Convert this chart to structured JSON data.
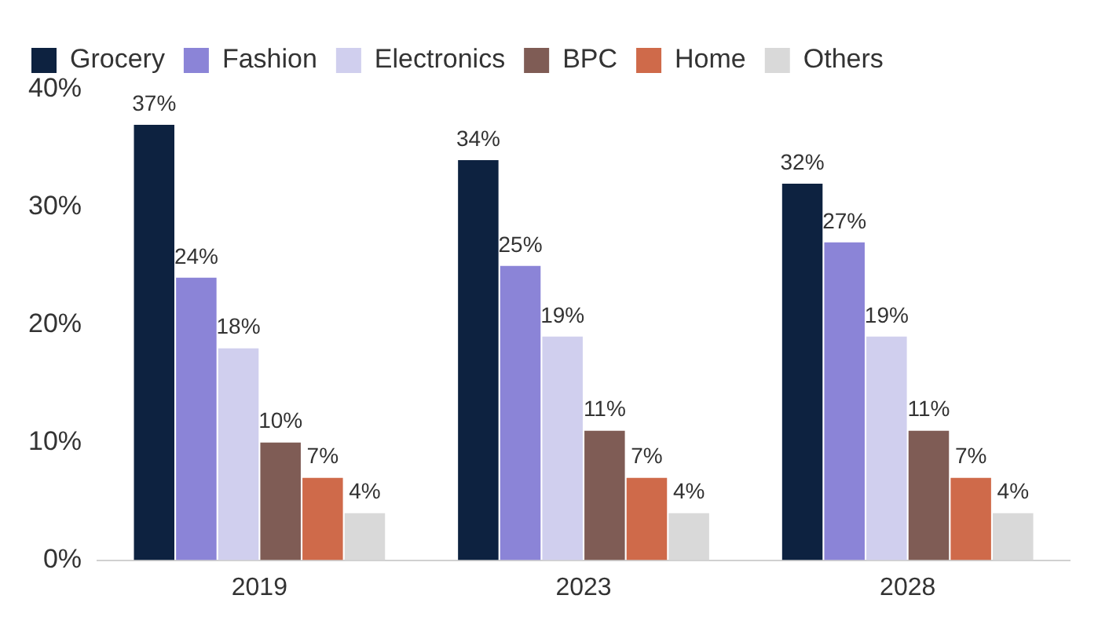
{
  "chart_data": {
    "type": "bar",
    "categories": [
      "2019",
      "2023",
      "2028"
    ],
    "series": [
      {
        "name": "Grocery",
        "color": "#0d2240",
        "values": [
          37,
          34,
          32
        ],
        "value_labels": [
          "37%",
          "34%",
          "32%"
        ]
      },
      {
        "name": "Fashion",
        "color": "#8b84d7",
        "values": [
          24,
          25,
          27
        ],
        "value_labels": [
          "24%",
          "25%",
          "27%"
        ]
      },
      {
        "name": "Electronics",
        "color": "#d0cfee",
        "values": [
          18,
          19,
          19
        ],
        "value_labels": [
          "18%",
          "19%",
          "19%"
        ]
      },
      {
        "name": "BPC",
        "color": "#7f5c55",
        "values": [
          10,
          11,
          11
        ],
        "value_labels": [
          "10%",
          "11%",
          "11%"
        ]
      },
      {
        "name": "Home",
        "color": "#cf6a4a",
        "values": [
          7,
          7,
          7
        ],
        "value_labels": [
          "7%",
          "7%",
          "7%"
        ]
      },
      {
        "name": "Others",
        "color": "#d9d9d9",
        "values": [
          4,
          4,
          4
        ],
        "value_labels": [
          "4%",
          "4%",
          "4%"
        ]
      }
    ],
    "ylim": [
      0,
      40
    ],
    "yticks": [
      {
        "value": 0,
        "label": "0%"
      },
      {
        "value": 10,
        "label": "10%"
      },
      {
        "value": 20,
        "label": "20%"
      },
      {
        "value": 30,
        "label": "30%"
      },
      {
        "value": 40,
        "label": "40%"
      }
    ],
    "grid": false,
    "legend": "top"
  }
}
